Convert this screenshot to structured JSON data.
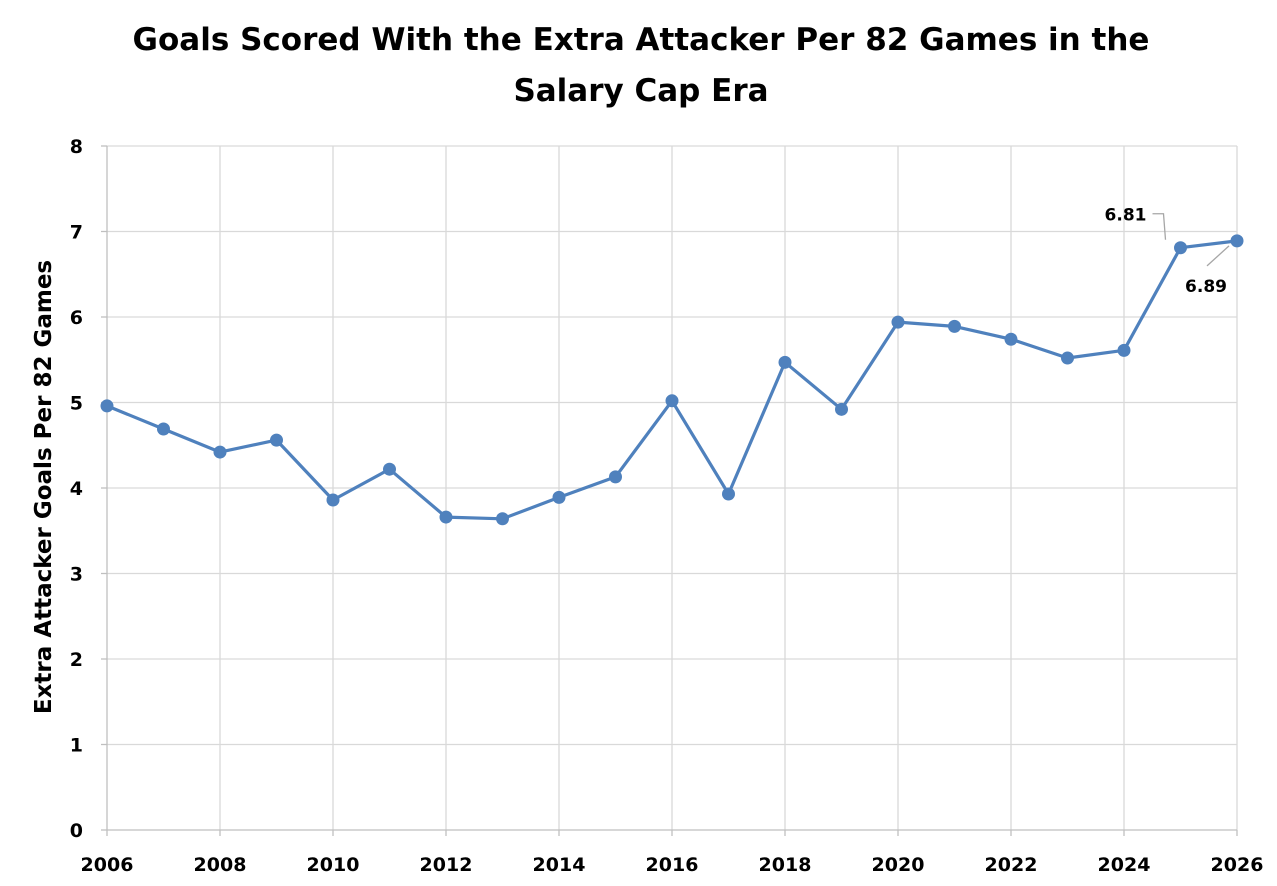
{
  "chart_data": {
    "type": "scatter",
    "title": "Goals Scored With the Extra Attacker Per 82 Games in the Salary Cap Era",
    "title_lines": [
      "Goals Scored With the Extra Attacker Per 82 Games in the",
      "Salary Cap Era"
    ],
    "xlabel": "",
    "ylabel": "Extra Attacker Goals Per 82 Games",
    "xlim": [
      2006,
      2026
    ],
    "ylim": [
      0,
      8
    ],
    "x_ticks": [
      2006,
      2008,
      2010,
      2012,
      2014,
      2016,
      2018,
      2020,
      2022,
      2024,
      2026
    ],
    "y_ticks": [
      0,
      1,
      2,
      3,
      4,
      5,
      6,
      7,
      8
    ],
    "x_tick_labels": [
      "2006",
      "2008",
      "2010",
      "2012",
      "2014",
      "2016",
      "2018",
      "2020",
      "2022",
      "2024",
      "2026"
    ],
    "y_tick_labels": [
      "0",
      "1",
      "2",
      "3",
      "4",
      "5",
      "6",
      "7",
      "8"
    ],
    "grid": true,
    "lines_connected": true,
    "color": "#4f81bd",
    "series": [
      {
        "x": [
          2006,
          2007,
          2008,
          2009,
          2010,
          2011,
          2012,
          2013,
          2014,
          2015,
          2016,
          2017,
          2018,
          2019,
          2020,
          2021,
          2022,
          2023,
          2024,
          2025,
          2026
        ],
        "y": [
          4.96,
          4.69,
          4.42,
          4.56,
          3.86,
          4.22,
          3.66,
          3.64,
          3.89,
          4.13,
          5.02,
          3.93,
          5.47,
          4.92,
          5.94,
          5.89,
          5.74,
          5.52,
          5.61,
          6.81,
          6.89
        ]
      }
    ],
    "annotations": [
      {
        "x": 2025,
        "y": 6.81,
        "text": "6.81"
      },
      {
        "x": 2026,
        "y": 6.89,
        "text": "6.89"
      }
    ]
  }
}
